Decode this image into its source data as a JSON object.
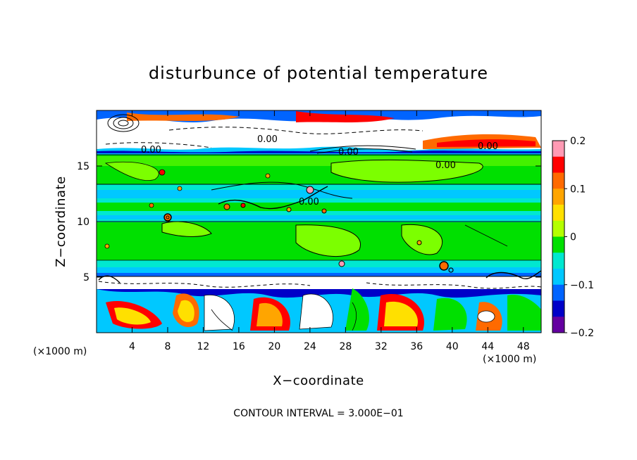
{
  "chart_data": {
    "type": "heatmap",
    "title": "disturbunce of potential temperature",
    "xlabel": "X−coordinate",
    "ylabel": "Z−coordinate",
    "x_unit_label": "(×1000 m)",
    "x_unit_label_right": "(×1000 m)",
    "xlim": [
      0,
      50
    ],
    "ylim": [
      0,
      20
    ],
    "x_ticks": [
      4,
      8,
      12,
      16,
      20,
      24,
      28,
      32,
      36,
      40,
      44,
      48
    ],
    "y_ticks": [
      5,
      10,
      15
    ],
    "colorbar": {
      "range": [
        -0.2,
        0.2
      ],
      "tick_values": [
        0.2,
        0.1,
        0,
        -0.1,
        -0.2
      ],
      "tick_labels": [
        "0.2",
        "0.1",
        "0",
        "−0.1",
        "−0.2"
      ],
      "colors": [
        "#ff9ab4",
        "#ff0000",
        "#ff6a00",
        "#ffa500",
        "#ffe000",
        "#b4ff00",
        "#00e000",
        "#00e8d0",
        "#00c8ff",
        "#0064ff",
        "#0000c8",
        "#6400a0"
      ]
    },
    "contour_labels": [
      "0.00",
      "0.00",
      "0.00",
      "0.00",
      "0.00",
      "0.00"
    ],
    "bands": [
      {
        "z": [
          0,
          5
        ],
        "character": "strong positive and negative cells"
      },
      {
        "z": [
          5,
          16
        ],
        "character": "near zero with weak negative layers"
      },
      {
        "z": [
          16,
          20
        ],
        "character": "mixed positive and negative"
      }
    ],
    "contour_interval": "CONTOUR INTERVAL = 3.000E−01"
  }
}
